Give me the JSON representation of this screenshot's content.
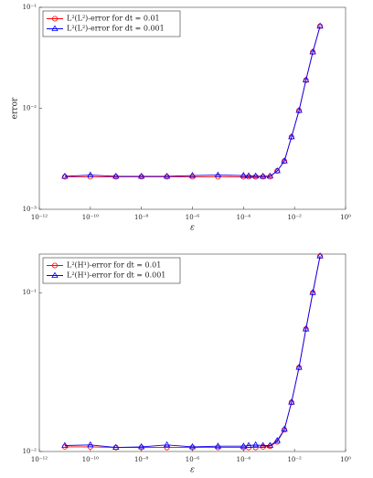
{
  "chart_data": [
    {
      "type": "line",
      "ylabel": "error",
      "xlabel": "ε",
      "xlog": true,
      "ylog": true,
      "legend": "upper left",
      "xlim": [
        1e-12,
        1
      ],
      "xticks": [
        {
          "value": 1e-12,
          "label": "10⁻¹²"
        },
        {
          "value": 1e-10,
          "label": "10⁻¹⁰"
        },
        {
          "value": 1e-08,
          "label": "10⁻⁸"
        },
        {
          "value": 1e-06,
          "label": "10⁻⁶"
        },
        {
          "value": 0.0001,
          "label": "10⁻⁴"
        },
        {
          "value": 0.01,
          "label": "10⁻²"
        },
        {
          "value": 1,
          "label": "10⁰"
        }
      ],
      "ylim": [
        0.001,
        0.1
      ],
      "yticks": [
        {
          "value": 0.001,
          "label": "10⁻³"
        },
        {
          "value": 0.01,
          "label": "10⁻²"
        },
        {
          "value": 0.1,
          "label": "10⁻¹"
        }
      ],
      "x": [
        1e-11,
        1e-10,
        1e-09,
        1e-08,
        1e-07,
        1e-06,
        1e-05,
        0.0001,
        0.00016,
        0.0003,
        0.00058,
        0.0011,
        0.0021,
        0.004,
        0.0076,
        0.015,
        0.028,
        0.052,
        0.1
      ],
      "series": [
        {
          "name": "L²(L²)-error for dt = 0.01",
          "color": "#ff0000",
          "marker": "circle",
          "values": [
            0.0021,
            0.0021,
            0.0021,
            0.0021,
            0.0021,
            0.0021,
            0.0021,
            0.0021,
            0.0021,
            0.0021,
            0.0021,
            0.0021,
            0.0024,
            0.003,
            0.0052,
            0.0095,
            0.019,
            0.036,
            0.065
          ]
        },
        {
          "name": "L²(L²)-error for dt = 0.001",
          "color": "#0000ff",
          "marker": "triangle",
          "values": [
            0.00212,
            0.00218,
            0.00212,
            0.00212,
            0.00212,
            0.00216,
            0.00218,
            0.00216,
            0.00214,
            0.00213,
            0.00212,
            0.00213,
            0.0024,
            0.003,
            0.0052,
            0.0095,
            0.019,
            0.036,
            0.065
          ]
        }
      ]
    },
    {
      "type": "line",
      "xlabel": "ε",
      "xlog": true,
      "ylog": true,
      "legend": "upper left",
      "xlim": [
        1e-12,
        1
      ],
      "xticks": [
        {
          "value": 1e-12,
          "label": "10⁻¹²"
        },
        {
          "value": 1e-10,
          "label": "10⁻¹⁰"
        },
        {
          "value": 1e-08,
          "label": "10⁻⁸"
        },
        {
          "value": 1e-06,
          "label": "10⁻⁶"
        },
        {
          "value": 0.0001,
          "label": "10⁻⁴"
        },
        {
          "value": 0.01,
          "label": "10⁻²"
        },
        {
          "value": 1,
          "label": "10⁰"
        }
      ],
      "ylim": [
        0.01,
        0.175
      ],
      "yticks": [
        {
          "value": 0.01,
          "label": "10⁻²"
        },
        {
          "value": 0.1,
          "label": "10⁻¹"
        }
      ],
      "x": [
        1e-11,
        1e-10,
        1e-09,
        1e-08,
        1e-07,
        1e-06,
        1e-05,
        0.0001,
        0.00016,
        0.0003,
        0.00058,
        0.0011,
        0.0021,
        0.004,
        0.0076,
        0.015,
        0.028,
        0.052,
        0.1
      ],
      "series": [
        {
          "name": "L²(H¹)-error for dt = 0.01",
          "color": "#ff0000",
          "marker": "circle",
          "values": [
            0.0107,
            0.0107,
            0.0106,
            0.0106,
            0.0106,
            0.0106,
            0.0106,
            0.0106,
            0.0106,
            0.0106,
            0.0107,
            0.0108,
            0.0115,
            0.0137,
            0.0204,
            0.0338,
            0.059,
            0.1,
            0.17
          ]
        },
        {
          "name": "L²(H¹)-error for dt = 0.001",
          "color": "#0000ff",
          "marker": "triangle",
          "values": [
            0.0109,
            0.011,
            0.0106,
            0.0107,
            0.011,
            0.0107,
            0.0108,
            0.0108,
            0.0109,
            0.011,
            0.0109,
            0.0109,
            0.0117,
            0.0138,
            0.0204,
            0.0338,
            0.059,
            0.1,
            0.17
          ]
        }
      ]
    }
  ]
}
